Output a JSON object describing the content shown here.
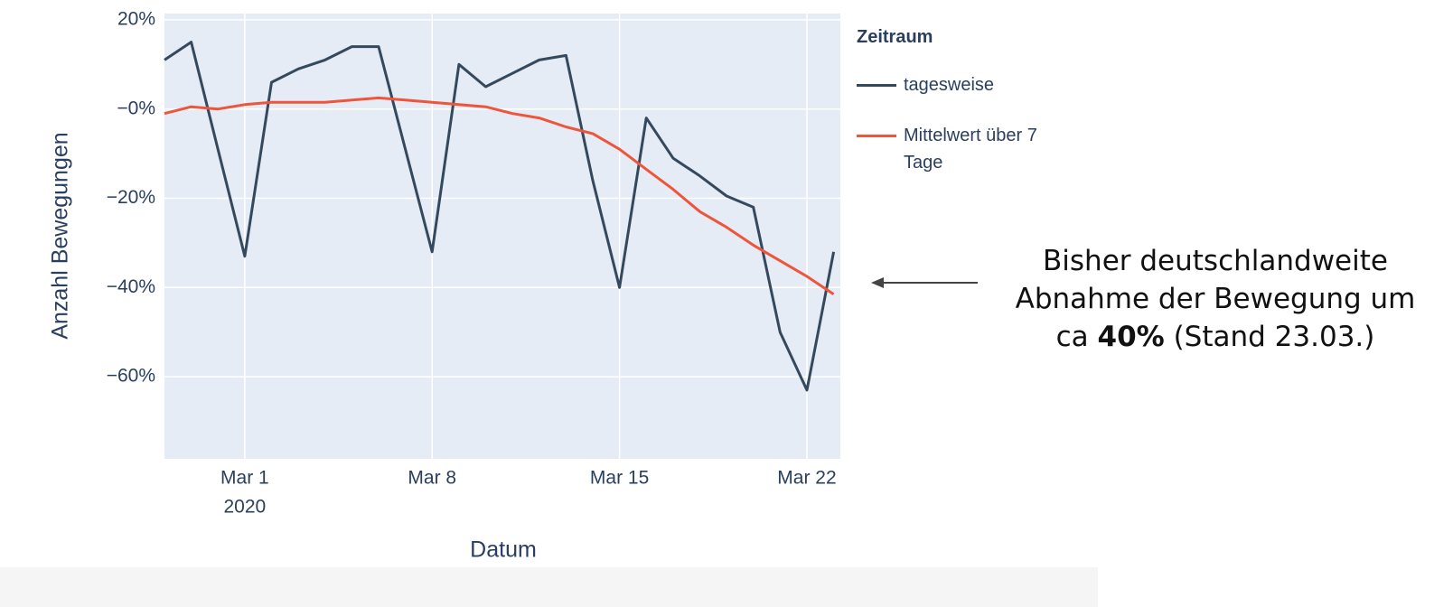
{
  "chart_data": {
    "type": "line",
    "y_axis_label": "Anzahl Bewegungen",
    "x_axis_label": "Datum",
    "legend_title": "Zeitraum",
    "x": [
      "2020-02-27",
      "2020-02-28",
      "2020-02-29",
      "2020-03-01",
      "2020-03-02",
      "2020-03-03",
      "2020-03-04",
      "2020-03-05",
      "2020-03-06",
      "2020-03-07",
      "2020-03-08",
      "2020-03-09",
      "2020-03-10",
      "2020-03-11",
      "2020-03-12",
      "2020-03-13",
      "2020-03-14",
      "2020-03-15",
      "2020-03-16",
      "2020-03-17",
      "2020-03-18",
      "2020-03-19",
      "2020-03-20",
      "2020-03-21",
      "2020-03-22",
      "2020-03-23"
    ],
    "series": [
      {
        "name": "tagesweise",
        "color": "#34495e",
        "values": [
          11,
          15,
          -9,
          -33,
          6,
          9,
          11,
          14,
          14,
          -9,
          -32,
          10,
          5,
          8,
          11,
          12,
          -16,
          -40,
          -2,
          -11,
          -15,
          -19.5,
          -22,
          -50,
          -63,
          -32
        ]
      },
      {
        "name": "Mittelwert über 7 Tage",
        "color": "#ef553b",
        "values": [
          -1,
          0.5,
          0,
          1,
          1.5,
          1.5,
          1.5,
          2,
          2.5,
          2,
          1.5,
          1,
          0.5,
          -1,
          -2,
          -4,
          -5.5,
          -9,
          -13.5,
          -18,
          -23,
          -26.5,
          -30.5,
          -34,
          -37.5,
          -41.5
        ]
      }
    ],
    "xlim": [
      "2020-02-27T00:00",
      "2020-03-23T06:00"
    ],
    "xticks": [
      {
        "value": "2020-03-01",
        "label": "Mar 1"
      },
      {
        "value": "2020-03-08",
        "label": "Mar 8"
      },
      {
        "value": "2020-03-15",
        "label": "Mar 15"
      },
      {
        "value": "2020-03-22",
        "label": "Mar 22"
      }
    ],
    "x_year_label": "2020",
    "ylim": [
      -78.4,
      21.4
    ],
    "yticks": [
      {
        "value": 20,
        "label": "20%"
      },
      {
        "value": 0,
        "label": "−0%"
      },
      {
        "value": -20,
        "label": "−20%"
      },
      {
        "value": -40,
        "label": "−40%"
      },
      {
        "value": -60,
        "label": "−60%"
      }
    ],
    "grid": true,
    "annotation": [
      "Bisher deutschlandweite Abnahme der Bewegung um ca ",
      "40%",
      " (Stand 23.03.)"
    ]
  }
}
